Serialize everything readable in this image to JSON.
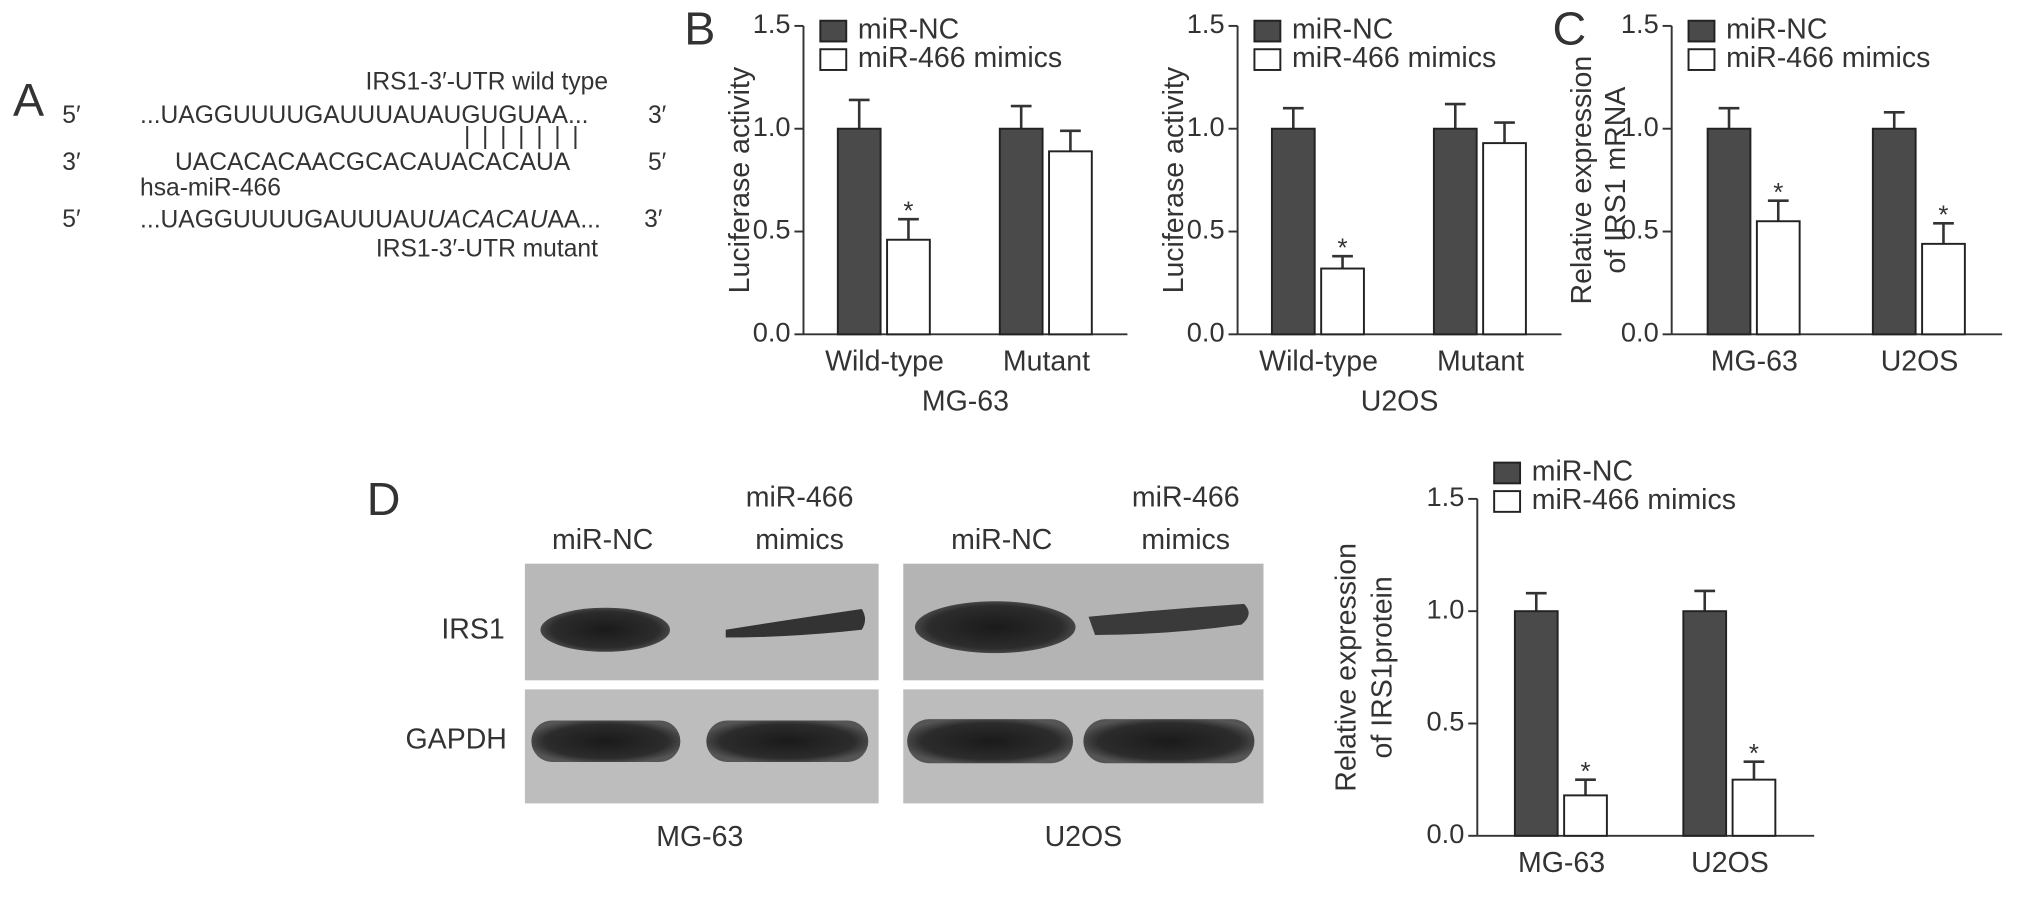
{
  "panel_labels": [
    "A",
    "B",
    "C",
    "D"
  ],
  "sequence": {
    "wild_type_label": "IRS1-3′-UTR wild type",
    "wild_type": {
      "left": "5′",
      "seq": "...UAGGUUUUGAUUUAUAUGUGUAA...",
      "right": "3′"
    },
    "pairing": "|||||||",
    "mirna": {
      "left": "3′",
      "seq": "UACACACAACGCACAUACACAUA",
      "right": "5′"
    },
    "mirna_label": "hsa-miR-466",
    "mutant": {
      "left": "5′",
      "seq": [
        "...UAGGUUUUGAUUUAU",
        "UACACAU",
        "AA..."
      ],
      "right": "3′"
    },
    "mutant_label": "IRS1-3′-UTR mutant"
  },
  "blot": {
    "columns": [
      [
        "miR-NC"
      ],
      [
        "miR-466",
        "mimics"
      ],
      [
        "miR-NC"
      ],
      [
        "miR-466",
        "mimics"
      ]
    ],
    "rows": [
      "IRS1",
      "GAPDH"
    ],
    "cell_lines": [
      "MG-63",
      "U2OS"
    ]
  },
  "chart_data": [
    {
      "type": "bar",
      "ylabel": [
        "Luciferase activity"
      ],
      "xlabel": "MG-63",
      "categories": [
        "Wild-type",
        "Mutant"
      ],
      "series": [
        {
          "name": "miR-NC",
          "color": "#4a4a4a",
          "values": [
            1.0,
            1.0
          ],
          "errors": [
            0.14,
            0.11
          ],
          "significance": [
            null,
            null
          ]
        },
        {
          "name": "miR-466 mimics",
          "color": "#ffffff",
          "values": [
            0.46,
            0.89
          ],
          "errors": [
            0.1,
            0.1
          ],
          "significance": [
            "*",
            null
          ]
        }
      ],
      "ylim": [
        0,
        1.5
      ],
      "yticks": [
        {
          "value": 0,
          "label": "0.0"
        },
        {
          "value": 0.5,
          "label": "0.5"
        },
        {
          "value": 1,
          "label": "1.0"
        },
        {
          "value": 1.5,
          "label": "1.5"
        }
      ],
      "legend": "upper left"
    },
    {
      "type": "bar",
      "ylabel": [
        "Luciferase activity"
      ],
      "xlabel": "U2OS",
      "categories": [
        "Wild-type",
        "Mutant"
      ],
      "series": [
        {
          "name": "miR-NC",
          "color": "#4a4a4a",
          "values": [
            1.0,
            1.0
          ],
          "errors": [
            0.1,
            0.12
          ],
          "significance": [
            null,
            null
          ]
        },
        {
          "name": "miR-466 mimics",
          "color": "#ffffff",
          "values": [
            0.32,
            0.93
          ],
          "errors": [
            0.06,
            0.1
          ],
          "significance": [
            "*",
            null
          ]
        }
      ],
      "ylim": [
        0,
        1.5
      ],
      "yticks": [
        {
          "value": 0,
          "label": "0.0"
        },
        {
          "value": 0.5,
          "label": "0.5"
        },
        {
          "value": 1,
          "label": "1.0"
        },
        {
          "value": 1.5,
          "label": "1.5"
        }
      ],
      "legend": "upper left"
    },
    {
      "type": "bar",
      "ylabel": [
        "Relative expression",
        "of IRS1 mRNA"
      ],
      "categories": [
        "MG-63",
        "U2OS"
      ],
      "series": [
        {
          "name": "miR-NC",
          "color": "#4a4a4a",
          "values": [
            1.0,
            1.0
          ],
          "errors": [
            0.1,
            0.08
          ],
          "significance": [
            null,
            null
          ]
        },
        {
          "name": "miR-466 mimics",
          "color": "#ffffff",
          "values": [
            0.55,
            0.44
          ],
          "errors": [
            0.1,
            0.1
          ],
          "significance": [
            "*",
            "*"
          ]
        }
      ],
      "ylim": [
        0,
        1.5
      ],
      "yticks": [
        {
          "value": 0,
          "label": "0.0"
        },
        {
          "value": 0.5,
          "label": "0.5"
        },
        {
          "value": 1,
          "label": "1.0"
        },
        {
          "value": 1.5,
          "label": "1.5"
        }
      ],
      "legend": "upper left"
    },
    {
      "type": "bar",
      "ylabel": [
        "Relative expression",
        "of IRS1protein"
      ],
      "categories": [
        "MG-63",
        "U2OS"
      ],
      "series": [
        {
          "name": "miR-NC",
          "color": "#4a4a4a",
          "values": [
            1.0,
            1.0
          ],
          "errors": [
            0.08,
            0.09
          ],
          "significance": [
            null,
            null
          ]
        },
        {
          "name": "miR-466 mimics",
          "color": "#ffffff",
          "values": [
            0.18,
            0.25
          ],
          "errors": [
            0.07,
            0.08
          ],
          "significance": [
            "*",
            "*"
          ]
        }
      ],
      "ylim": [
        0,
        1.5
      ],
      "yticks": [
        {
          "value": 0,
          "label": "0.0"
        },
        {
          "value": 0.5,
          "label": "0.5"
        },
        {
          "value": 1,
          "label": "1.0"
        },
        {
          "value": 1.5,
          "label": "1.5"
        }
      ],
      "legend": "upper left"
    }
  ]
}
